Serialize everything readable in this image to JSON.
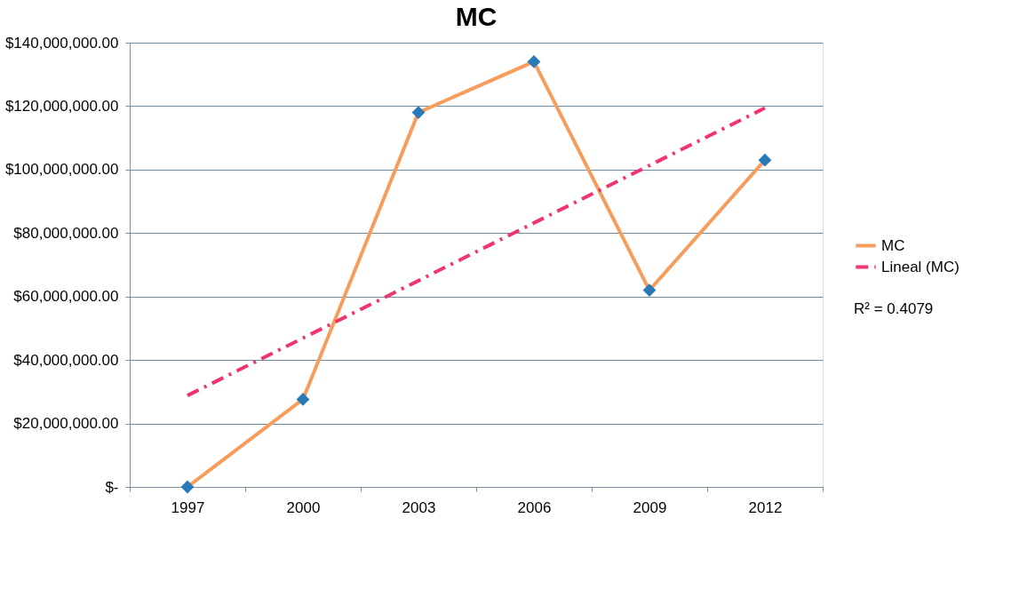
{
  "chart_data": {
    "type": "line",
    "title": "MC",
    "categories": [
      "1997",
      "2000",
      "2003",
      "2006",
      "2009",
      "2012"
    ],
    "series": [
      {
        "name": "MC",
        "color": "#f79d5c",
        "marker": "diamond",
        "colors": [
          "#2a7ab8",
          "#2a7ab8",
          "#2a7ab8",
          "#2a7ab8",
          "#2a7ab8",
          "#2a7ab8"
        ],
        "values": [
          0,
          27600000,
          118000000,
          134000000,
          62000000,
          103000000
        ]
      },
      {
        "name": "Lineal (MC)",
        "type": "line",
        "color": "#f0356e",
        "line_style": "dashed",
        "marker": "none",
        "values": [
          28800000,
          46900000,
          65000000,
          83200000,
          101300000,
          119400000
        ]
      }
    ],
    "ylim": [
      0,
      140000000
    ],
    "yticks": [
      {
        "value": 0,
        "label": "$-"
      },
      {
        "value": 20000000,
        "label": "$20,000,000.00"
      },
      {
        "value": 40000000,
        "label": "$40,000,000.00"
      },
      {
        "value": 60000000,
        "label": "$60,000,000.00"
      },
      {
        "value": 80000000,
        "label": "$80,000,000.00"
      },
      {
        "value": 100000000,
        "label": "$100,000,000.00"
      },
      {
        "value": 120000000,
        "label": "$120,000,000.00"
      },
      {
        "value": 140000000,
        "label": "$140,000,000.00"
      }
    ],
    "grid": "y",
    "legend": "right",
    "annotations": [
      "R² = 0.4079"
    ]
  }
}
